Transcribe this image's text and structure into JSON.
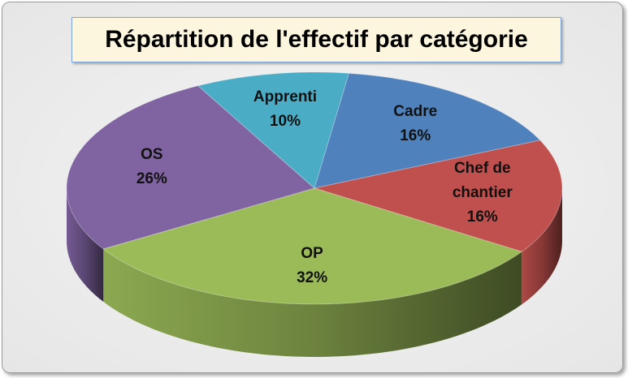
{
  "chart_data": {
    "type": "pie",
    "title": "Répartition de l'effectif par catégorie",
    "categories": [
      "Cadre",
      "Chef de chantier",
      "OP",
      "OS",
      "Apprenti"
    ],
    "values": [
      16,
      16,
      32,
      26,
      10
    ],
    "value_labels": [
      "16%",
      "16%",
      "32%",
      "26%",
      "10%"
    ],
    "colors": [
      "#4f81bd",
      "#c0504d",
      "#9bbb59",
      "#8064a2",
      "#4bacc6"
    ]
  }
}
